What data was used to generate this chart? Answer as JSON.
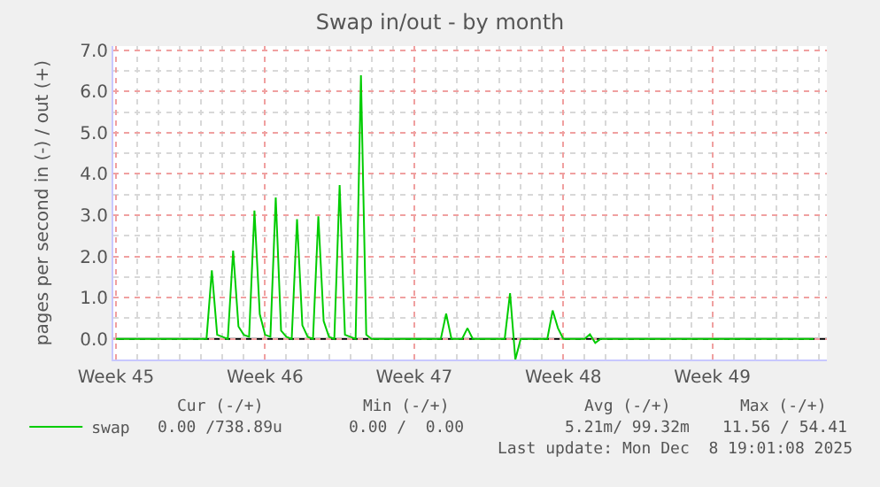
{
  "chart_data": {
    "type": "line",
    "title": "Swap in/out - by month",
    "ylabel": "pages per second in (-) / out (+)",
    "categories": [
      "Week 45",
      null,
      null,
      null,
      null,
      null,
      null,
      null,
      null,
      null,
      null,
      null,
      null,
      null,
      null,
      null,
      null,
      null,
      null,
      null,
      null,
      null,
      null,
      null,
      null,
      null,
      null,
      null,
      "Week 46",
      null,
      null,
      null,
      null,
      null,
      null,
      null,
      null,
      null,
      null,
      null,
      null,
      null,
      null,
      null,
      null,
      null,
      null,
      null,
      null,
      null,
      null,
      null,
      null,
      null,
      null,
      null,
      "Week 47",
      null,
      null,
      null,
      null,
      null,
      null,
      null,
      null,
      null,
      null,
      null,
      null,
      null,
      null,
      null,
      null,
      null,
      null,
      null,
      null,
      null,
      null,
      null,
      null,
      null,
      null,
      null,
      "Week 48",
      null,
      null,
      null,
      null,
      null,
      null,
      null,
      null,
      null,
      null,
      null,
      null,
      null,
      null,
      null,
      null,
      null,
      null,
      null,
      null,
      null,
      null,
      null,
      null,
      null,
      null,
      null,
      "Week 49",
      null,
      null,
      null,
      null,
      null,
      null,
      null,
      null,
      null,
      null,
      null,
      null,
      null,
      null,
      null,
      null,
      null,
      null,
      null,
      null,
      null
    ],
    "series": [
      {
        "name": "swap",
        "color": "#00cc00",
        "values": [
          0,
          0,
          0,
          0,
          0,
          0,
          0,
          0,
          0,
          0,
          0,
          0,
          0,
          0,
          0,
          0,
          0,
          0,
          1.66,
          0.1,
          0.05,
          0,
          2.14,
          0.3,
          0.1,
          0.05,
          3.11,
          0.6,
          0.1,
          0.05,
          3.43,
          0.2,
          0.05,
          0,
          2.9,
          0.33,
          0.05,
          0,
          2.97,
          0.43,
          0.05,
          0,
          3.73,
          0.1,
          0.05,
          0,
          6.39,
          0.1,
          0,
          0,
          0,
          0,
          0,
          0,
          0,
          0,
          0,
          0,
          0,
          0,
          0,
          0,
          0.61,
          0,
          0,
          0,
          0.26,
          0,
          0,
          0,
          0,
          0,
          0,
          0,
          1.11,
          -0.5,
          0,
          0,
          0,
          0,
          0,
          0,
          0.69,
          0.26,
          0,
          0,
          0,
          0,
          0,
          0.11,
          -0.1,
          0,
          0,
          0,
          0,
          0,
          0,
          0,
          0,
          0,
          0,
          0,
          0,
          0,
          0,
          0,
          0,
          0,
          0,
          0,
          0,
          0,
          0,
          0,
          0,
          0,
          0,
          0,
          0,
          0,
          0,
          0,
          0,
          0,
          0,
          0,
          0,
          0,
          0,
          0,
          0,
          0,
          null,
          null
        ]
      }
    ],
    "ylim": [
      -0.5,
      7.1
    ],
    "yticks": [
      {
        "value": 0,
        "label": "0.0"
      },
      {
        "value": 1,
        "label": "1.0"
      },
      {
        "value": 2,
        "label": "2.0"
      },
      {
        "value": 3,
        "label": "3.0"
      },
      {
        "value": 4,
        "label": "4.0"
      },
      {
        "value": 5,
        "label": "5.0"
      },
      {
        "value": 6,
        "label": "6.0"
      },
      {
        "value": 7,
        "label": "7.0"
      }
    ],
    "ref_lines": [
      {
        "axis": "y",
        "value": 0,
        "color": "#000000"
      }
    ],
    "grid": true,
    "legend": "bottom left",
    "marker": "none",
    "line_style": "solid",
    "annotations": [
      "Cur (-/+)",
      "Min (-/+)",
      "Avg (-/+)",
      "Max (-/+)",
      "0.00 /738.89u",
      "0.00 /  0.00",
      "5.21m/ 99.32m",
      "11.56 / 54.41",
      "Last update: Mon Dec  8 19:01:08 2025"
    ]
  }
}
